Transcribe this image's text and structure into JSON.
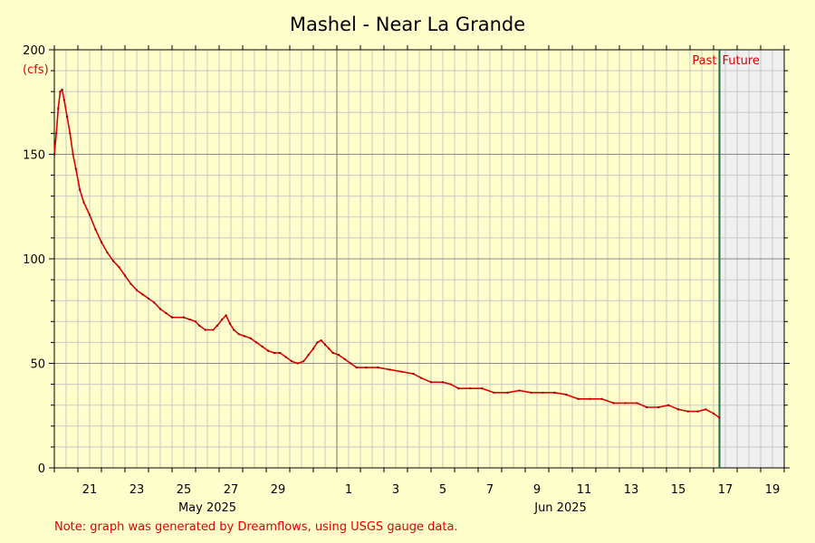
{
  "chart_data": {
    "type": "line",
    "title": "Mashel - Near La Grande",
    "ylabel": "(cfs)",
    "xlabel": "",
    "ylim": [
      0,
      200
    ],
    "yticks": [
      "0",
      "50",
      "100",
      "150",
      "200"
    ],
    "xlim": [
      "2025-05-20",
      "2025-06-20"
    ],
    "xticks": [
      {
        "date": "2025-05-21",
        "label": "21"
      },
      {
        "date": "2025-05-23",
        "label": "23"
      },
      {
        "date": "2025-05-25",
        "label": "25"
      },
      {
        "date": "2025-05-27",
        "label": "27"
      },
      {
        "date": "2025-05-29",
        "label": "29"
      },
      {
        "date": "2025-06-01",
        "label": "1"
      },
      {
        "date": "2025-06-03",
        "label": "3"
      },
      {
        "date": "2025-06-05",
        "label": "5"
      },
      {
        "date": "2025-06-07",
        "label": "7"
      },
      {
        "date": "2025-06-09",
        "label": "9"
      },
      {
        "date": "2025-06-11",
        "label": "11"
      },
      {
        "date": "2025-06-13",
        "label": "13"
      },
      {
        "date": "2025-06-15",
        "label": "15"
      },
      {
        "date": "2025-06-17",
        "label": "17"
      },
      {
        "date": "2025-06-19",
        "label": "19"
      }
    ],
    "month_labels": [
      {
        "date": "2025-05-26",
        "label": "May 2025"
      },
      {
        "date": "2025-06-10",
        "label": "Jun 2025"
      }
    ],
    "now_date": "2025-06-17T06:00",
    "past_label": "Past",
    "future_label": "Future",
    "grid": true,
    "series": [
      {
        "color": "#e00000",
        "points": [
          [
            "2025-05-20T00:00",
            150
          ],
          [
            "2025-05-20T02:00",
            160
          ],
          [
            "2025-05-20T04:00",
            172
          ],
          [
            "2025-05-20T06:00",
            180
          ],
          [
            "2025-05-20T08:00",
            181
          ],
          [
            "2025-05-20T10:00",
            176
          ],
          [
            "2025-05-20T13:00",
            168
          ],
          [
            "2025-05-20T16:00",
            160
          ],
          [
            "2025-05-20T19:00",
            150
          ],
          [
            "2025-05-20T22:00",
            143
          ],
          [
            "2025-05-21T02:00",
            133
          ],
          [
            "2025-05-21T06:00",
            127
          ],
          [
            "2025-05-21T12:00",
            121
          ],
          [
            "2025-05-21T18:00",
            114
          ],
          [
            "2025-05-22T00:00",
            108
          ],
          [
            "2025-05-22T06:00",
            103
          ],
          [
            "2025-05-22T12:00",
            99
          ],
          [
            "2025-05-22T18:00",
            96
          ],
          [
            "2025-05-23T00:00",
            92
          ],
          [
            "2025-05-23T06:00",
            88
          ],
          [
            "2025-05-23T12:00",
            85
          ],
          [
            "2025-05-23T18:00",
            83
          ],
          [
            "2025-05-24T00:00",
            81
          ],
          [
            "2025-05-24T06:00",
            79
          ],
          [
            "2025-05-24T12:00",
            76
          ],
          [
            "2025-05-24T18:00",
            74
          ],
          [
            "2025-05-25T00:00",
            72
          ],
          [
            "2025-05-25T12:00",
            72
          ],
          [
            "2025-05-25T18:00",
            71
          ],
          [
            "2025-05-26T00:00",
            70
          ],
          [
            "2025-05-26T04:00",
            68
          ],
          [
            "2025-05-26T10:00",
            66
          ],
          [
            "2025-05-26T18:00",
            66
          ],
          [
            "2025-05-26T22:00",
            68
          ],
          [
            "2025-05-27T03:00",
            71
          ],
          [
            "2025-05-27T07:00",
            73
          ],
          [
            "2025-05-27T11:00",
            69
          ],
          [
            "2025-05-27T15:00",
            66
          ],
          [
            "2025-05-27T20:00",
            64
          ],
          [
            "2025-05-28T02:00",
            63
          ],
          [
            "2025-05-28T08:00",
            62
          ],
          [
            "2025-05-28T14:00",
            60
          ],
          [
            "2025-05-28T20:00",
            58
          ],
          [
            "2025-05-29T02:00",
            56
          ],
          [
            "2025-05-29T08:00",
            55
          ],
          [
            "2025-05-29T14:00",
            55
          ],
          [
            "2025-05-29T20:00",
            53
          ],
          [
            "2025-05-30T02:00",
            51
          ],
          [
            "2025-05-30T08:00",
            50
          ],
          [
            "2025-05-30T14:00",
            51
          ],
          [
            "2025-05-30T19:00",
            54
          ],
          [
            "2025-05-31T00:00",
            57
          ],
          [
            "2025-05-31T04:00",
            60
          ],
          [
            "2025-05-31T08:00",
            61
          ],
          [
            "2025-05-31T12:00",
            59
          ],
          [
            "2025-05-31T16:00",
            57
          ],
          [
            "2025-05-31T20:00",
            55
          ],
          [
            "2025-06-01T02:00",
            54
          ],
          [
            "2025-06-01T08:00",
            52
          ],
          [
            "2025-06-01T14:00",
            50
          ],
          [
            "2025-06-01T20:00",
            48
          ],
          [
            "2025-06-02T06:00",
            48
          ],
          [
            "2025-06-02T18:00",
            48
          ],
          [
            "2025-06-03T06:00",
            47
          ],
          [
            "2025-06-03T18:00",
            46
          ],
          [
            "2025-06-04T06:00",
            45
          ],
          [
            "2025-06-04T14:00",
            43
          ],
          [
            "2025-06-05T00:00",
            41
          ],
          [
            "2025-06-05T12:00",
            41
          ],
          [
            "2025-06-05T20:00",
            40
          ],
          [
            "2025-06-06T04:00",
            38
          ],
          [
            "2025-06-06T16:00",
            38
          ],
          [
            "2025-06-07T04:00",
            38
          ],
          [
            "2025-06-07T16:00",
            36
          ],
          [
            "2025-06-08T06:00",
            36
          ],
          [
            "2025-06-08T18:00",
            37
          ],
          [
            "2025-06-09T06:00",
            36
          ],
          [
            "2025-06-09T18:00",
            36
          ],
          [
            "2025-06-10T06:00",
            36
          ],
          [
            "2025-06-10T18:00",
            35
          ],
          [
            "2025-06-11T06:00",
            33
          ],
          [
            "2025-06-11T18:00",
            33
          ],
          [
            "2025-06-12T06:00",
            33
          ],
          [
            "2025-06-12T18:00",
            31
          ],
          [
            "2025-06-13T06:00",
            31
          ],
          [
            "2025-06-13T18:00",
            31
          ],
          [
            "2025-06-14T04:00",
            29
          ],
          [
            "2025-06-14T16:00",
            29
          ],
          [
            "2025-06-15T02:00",
            30
          ],
          [
            "2025-06-15T12:00",
            28
          ],
          [
            "2025-06-15T22:00",
            27
          ],
          [
            "2025-06-16T08:00",
            27
          ],
          [
            "2025-06-16T16:00",
            28
          ],
          [
            "2025-06-17T00:00",
            26
          ],
          [
            "2025-06-17T06:00",
            24
          ]
        ]
      }
    ],
    "note": "Note: graph was generated by Dreamflows, using USGS gauge data."
  }
}
